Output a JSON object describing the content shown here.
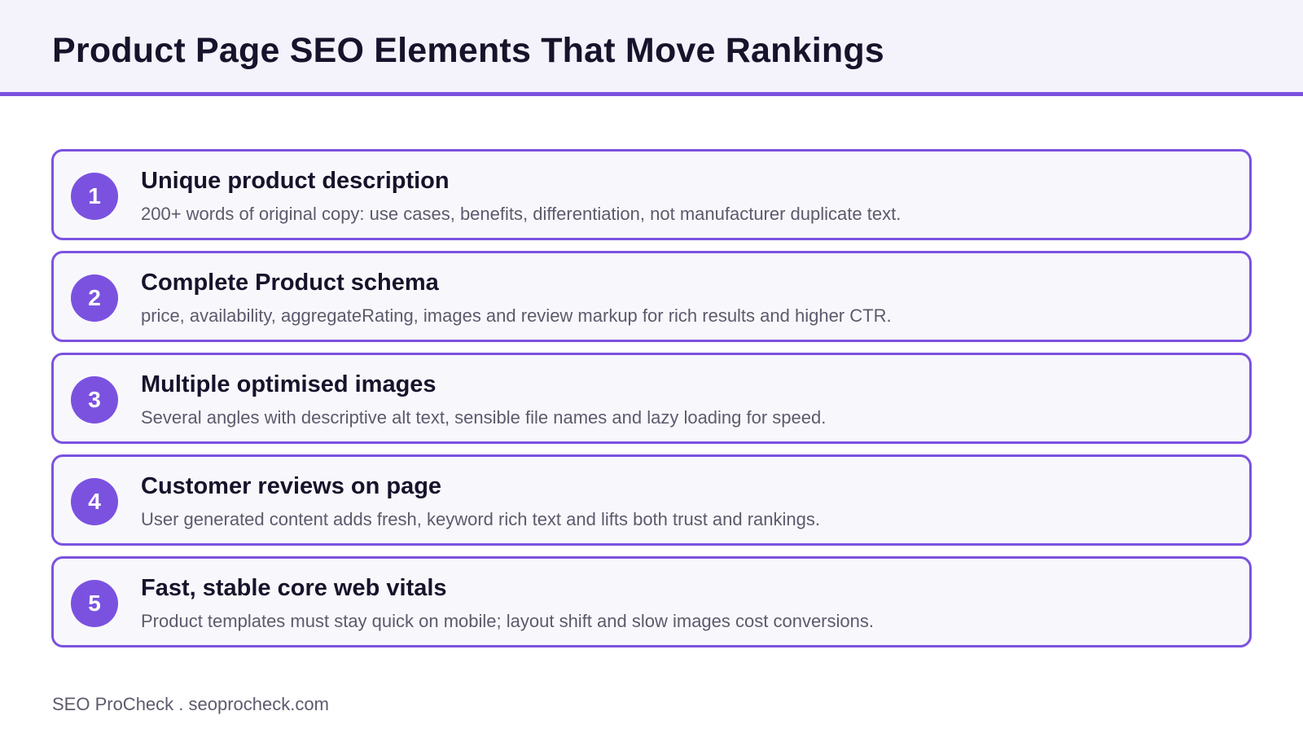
{
  "header": {
    "title": "Product Page SEO Elements That Move Rankings"
  },
  "items": [
    {
      "number": "1",
      "title": "Unique product description",
      "description": "200+ words of original copy: use cases, benefits, differentiation, not manufacturer duplicate text."
    },
    {
      "number": "2",
      "title": "Complete Product schema",
      "description": "price, availability, aggregateRating, images and review markup for rich results and higher CTR."
    },
    {
      "number": "3",
      "title": "Multiple optimised images",
      "description": "Several angles with descriptive alt text, sensible file names and lazy loading for speed."
    },
    {
      "number": "4",
      "title": "Customer reviews on page",
      "description": "User generated content adds fresh, keyword rich text and lifts both trust and rankings."
    },
    {
      "number": "5",
      "title": "Fast, stable core web vitals",
      "description": "Product templates must stay quick on mobile; layout shift and slow images cost conversions."
    }
  ],
  "footer": {
    "text": "SEO ProCheck . seoprocheck.com"
  },
  "colors": {
    "accent": "#7b52e0",
    "header_background": "#f4f3fc",
    "card_background": "#f8f8fc",
    "title_text": "#16132b",
    "body_text": "#5c5a6c"
  }
}
